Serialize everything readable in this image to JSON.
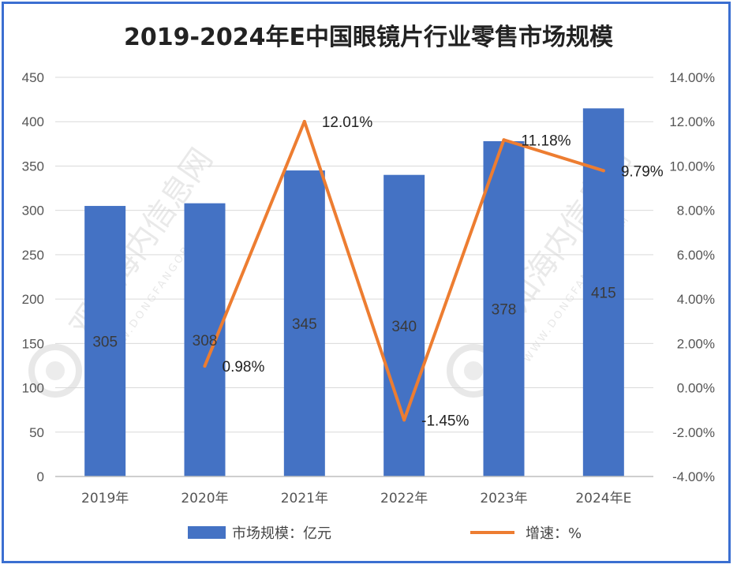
{
  "chart_data": {
    "type": "bar",
    "title": "2019-2024年E中国眼镜片行业零售市场规模",
    "categories": [
      "2019年",
      "2020年",
      "2021年",
      "2022年",
      "2023年",
      "2024年E"
    ],
    "series": [
      {
        "name": "市场规模：亿元",
        "type": "bar",
        "axis": "left",
        "values": [
          305,
          308,
          345,
          340,
          378,
          415
        ],
        "labels": [
          "305",
          "308",
          "345",
          "340",
          "378",
          "415"
        ],
        "color": "#4472c4"
      },
      {
        "name": "增速：%",
        "type": "line",
        "axis": "right",
        "values": [
          null,
          0.98,
          12.01,
          -1.45,
          11.18,
          9.79
        ],
        "labels": [
          "",
          "0.98%",
          "12.01%",
          "-1.45%",
          "11.18%",
          "9.79%"
        ],
        "color": "#ed7d31"
      }
    ],
    "y_left": {
      "min": 0,
      "max": 450,
      "ticks": [
        0,
        50,
        100,
        150,
        200,
        250,
        300,
        350,
        400,
        450
      ],
      "tick_labels": [
        "0",
        "50",
        "100",
        "150",
        "200",
        "250",
        "300",
        "350",
        "400",
        "450"
      ]
    },
    "y_right": {
      "min": -4,
      "max": 14,
      "ticks": [
        -4,
        -2,
        0,
        2,
        4,
        6,
        8,
        10,
        12,
        14
      ],
      "tick_labels": [
        "-4.00%",
        "-2.00%",
        "0.00%",
        "2.00%",
        "4.00%",
        "6.00%",
        "8.00%",
        "10.00%",
        "12.00%",
        "14.00%"
      ]
    },
    "grid": true,
    "legend": "bottom"
  },
  "watermark": {
    "text": "观知海内信息网",
    "subtext": "WWW.DONGFANGOB.COM"
  }
}
